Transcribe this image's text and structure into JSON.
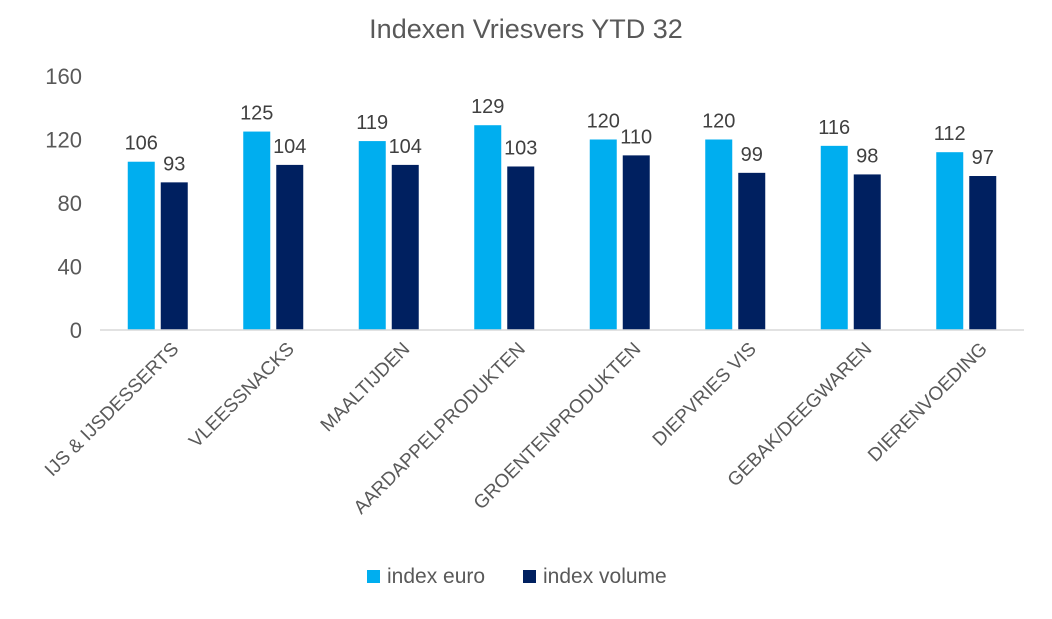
{
  "chart_data": {
    "type": "bar",
    "title": "Indexen Vriesvers YTD 32",
    "categories": [
      "IJS & IJSDESSERTS",
      "VLEESSNACKS",
      "MAALTIJDEN",
      "AARDAPPELPRODUKTEN",
      "GROENTENPRODUKTEN",
      "DIEPVRIES VIS",
      "GEBAK/DEEGWAREN",
      "DIERENVOEDING"
    ],
    "series": [
      {
        "name": "index euro",
        "color": "#00AEEF",
        "values": [
          106,
          125,
          119,
          129,
          120,
          120,
          116,
          112
        ]
      },
      {
        "name": "index volume",
        "color": "#002060",
        "values": [
          93,
          104,
          104,
          103,
          110,
          99,
          98,
          97
        ]
      }
    ],
    "xlabel": "",
    "ylabel": "",
    "ylim": [
      0,
      160
    ],
    "yticks": [
      0,
      40,
      80,
      120,
      160
    ],
    "grid": false,
    "legend_position": "bottom",
    "data_labels": true
  }
}
